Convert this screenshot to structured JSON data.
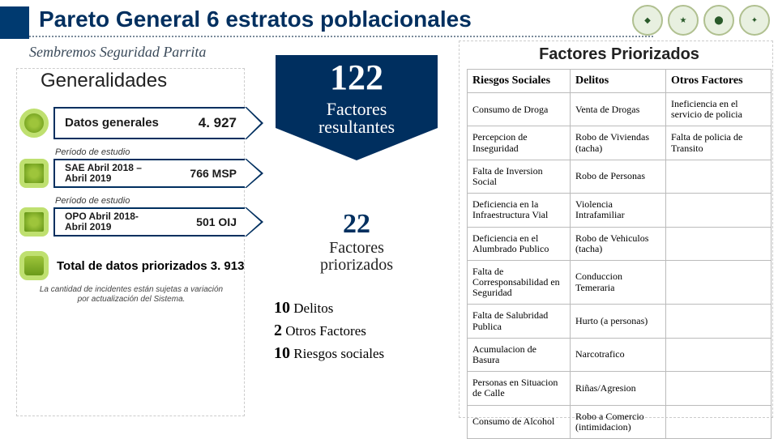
{
  "header": {
    "title": "Pareto General 6  estratos poblacionales",
    "subtitle": "Sembremos Seguridad  Parrita"
  },
  "generalidades": {
    "heading": "Generalidades",
    "datos": {
      "label": "Datos generales",
      "value": "4. 927"
    },
    "period1_caption": "Período de estudio",
    "sae": {
      "label": "SAE Abril 2018 – Abril 2019",
      "value": "766 MSP"
    },
    "period2_caption": "Período de estudio",
    "opo": {
      "label": "OPO Abril 2018- Abril 2019",
      "value": "501 OIJ"
    },
    "total_label": "Total de datos priorizados  3. 913",
    "disclaimer": "La cantidad de incidentes están sujetas a variación por actualización del Sistema."
  },
  "mid": {
    "big_number": "122",
    "big_label1": "Factores",
    "big_label2": "resultantes",
    "pri_number": "22",
    "pri_label1": "Factores",
    "pri_label2": "priorizados",
    "b1_n": "10",
    "b1_t": "Delitos",
    "b2_n": "2",
    "b2_t": "Otros Factores",
    "b3_n": "10",
    "b3_t": "Riesgos sociales"
  },
  "right": {
    "heading": "Factores Priorizados",
    "cols": [
      "Riesgos Sociales",
      "Delitos",
      "Otros Factores"
    ],
    "rows": [
      [
        "Consumo de Droga",
        "Venta de Drogas",
        "Ineficiencia en el servicio de policia"
      ],
      [
        "Percepcion de Inseguridad",
        "Robo de Viviendas (tacha)",
        "Falta de policia de Transito"
      ],
      [
        "Falta de Inversion Social",
        "Robo de Personas",
        ""
      ],
      [
        "Deficiencia en la Infraestructura Vial",
        "Violencia Intrafamiliar",
        ""
      ],
      [
        "Deficiencia en el Alumbrado Publico",
        "Robo de Vehiculos (tacha)",
        ""
      ],
      [
        "Falta de Corresponsabilidad en Seguridad",
        "Conduccion Temeraria",
        ""
      ],
      [
        "Falta de Salubridad Publica",
        "Hurto (a personas)",
        ""
      ],
      [
        "Acumulacion de Basura",
        "Narcotrafico",
        ""
      ],
      [
        "Personas en Situacion de Calle",
        "Riñas/Agresion",
        ""
      ],
      [
        "Consumo de Alcohol",
        "Robo a Comercio (intimidacion)",
        ""
      ]
    ]
  }
}
